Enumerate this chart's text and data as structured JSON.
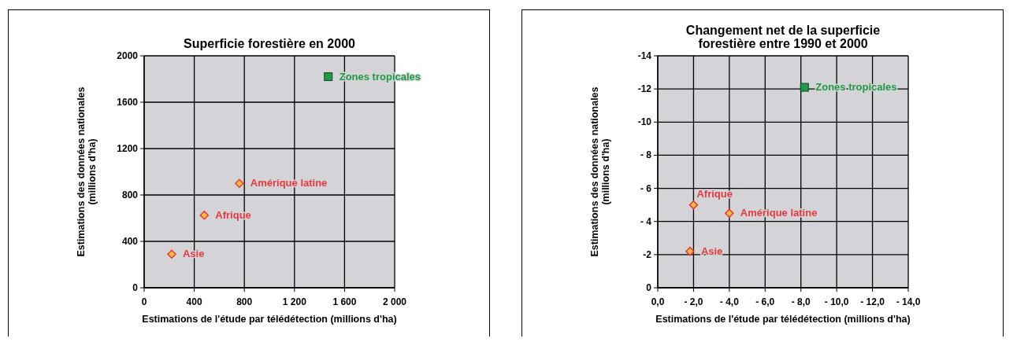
{
  "chart_data": [
    {
      "type": "scatter",
      "title": "Superficie forestière en 2000",
      "xlabel": "Estimations de l'étude par télédétection (millions d'ha)",
      "ylabel": "Estimations des données nationales\n(millions d'ha)",
      "xlim": [
        0,
        2000
      ],
      "ylim": [
        0,
        2000
      ],
      "xticks": [
        0,
        400,
        800,
        {
          "value": 1200,
          "label": "1 200"
        },
        {
          "value": 1600,
          "label": "1 600"
        },
        {
          "value": 2000,
          "label": "2 000"
        }
      ],
      "yticks": [
        0,
        400,
        800,
        1200,
        1600,
        2000
      ],
      "grid": true,
      "legend": false,
      "series": [
        {
          "name": "Asie",
          "color": "#e8383d",
          "marker": "diamond",
          "x": [
            220
          ],
          "values": [
            290
          ]
        },
        {
          "name": "Afrique",
          "color": "#e8383d",
          "marker": "diamond",
          "x": [
            480
          ],
          "values": [
            625
          ]
        },
        {
          "name": "Amérique latine",
          "color": "#e8383d",
          "marker": "diamond",
          "x": [
            760
          ],
          "values": [
            900
          ]
        },
        {
          "name": "Zones tropicales",
          "color": "#1f9a45",
          "marker": "square",
          "x": [
            1470
          ],
          "values": [
            1820
          ]
        }
      ]
    },
    {
      "type": "scatter",
      "title": "Changement net de la superficie\nforestière entre 1990 et 2000",
      "xlabel": "Estimations de l'étude par télédétection (millions d'ha)",
      "ylabel": "Estimations des données nationales\n(millions d'ha)",
      "xlim": [
        0,
        -14
      ],
      "ylim": [
        0,
        -14
      ],
      "xticks": [
        {
          "value": 0,
          "label": "0,0"
        },
        {
          "value": -2,
          "label": "- 2,0"
        },
        {
          "value": -4,
          "label": "- 4,0"
        },
        {
          "value": -6,
          "label": "- 6,0"
        },
        {
          "value": -8,
          "label": "- 8,0"
        },
        {
          "value": -10,
          "label": "- 10,0"
        },
        {
          "value": -12,
          "label": "- 12,0"
        },
        {
          "value": -14,
          "label": "- 14,0"
        }
      ],
      "yticks": [
        0,
        -2,
        {
          "value": -4,
          "label": "- 4"
        },
        {
          "value": -6,
          "label": "- 6"
        },
        {
          "value": -8,
          "label": "- 8"
        },
        -10,
        -12,
        -14
      ],
      "grid": true,
      "legend": false,
      "series": [
        {
          "name": "Asie",
          "color": "#e8383d",
          "marker": "diamond",
          "x": [
            -1.8
          ],
          "values": [
            -2.2
          ]
        },
        {
          "name": "Afrique",
          "color": "#e8383d",
          "marker": "diamond",
          "x": [
            -2
          ],
          "values": [
            -5
          ]
        },
        {
          "name": "Amérique latine",
          "color": "#e8383d",
          "marker": "diamond",
          "x": [
            -4
          ],
          "values": [
            -4.5
          ]
        },
        {
          "name": "Zones tropicales",
          "color": "#1f9a45",
          "marker": "square",
          "x": [
            -8.2
          ],
          "values": [
            -12.1
          ]
        }
      ]
    }
  ]
}
